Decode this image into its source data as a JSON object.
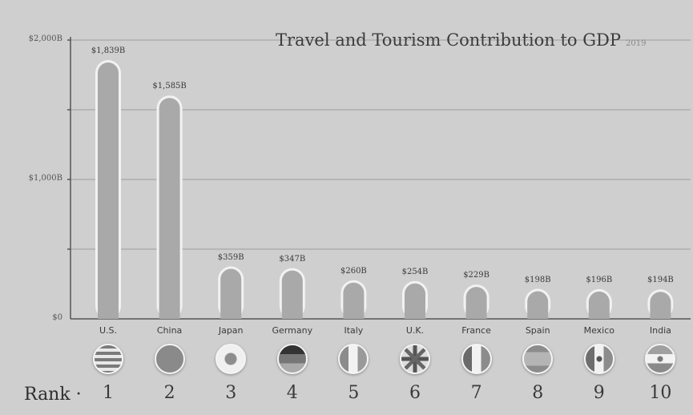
{
  "chart_data": {
    "type": "bar",
    "title": "Travel and Tourism Contribution to GDP",
    "subtitle": "2019",
    "ylim": [
      0,
      2000
    ],
    "yticks": [
      {
        "value": 0,
        "label": "$0"
      },
      {
        "value": 1000,
        "label": "$1,000B"
      },
      {
        "value": 2000,
        "label": "$2,000B"
      }
    ],
    "grid": true,
    "categories": [
      "U.S.",
      "China",
      "Japan",
      "Germany",
      "Italy",
      "U.K.",
      "France",
      "Spain",
      "Mexico",
      "India"
    ],
    "values": [
      1839,
      1585,
      359,
      347,
      260,
      254,
      229,
      198,
      196,
      194
    ],
    "value_labels": [
      "$1,839B",
      "$1,585B",
      "$359B",
      "$347B",
      "$260B",
      "$254B",
      "$229B",
      "$198B",
      "$196B",
      "$194B"
    ],
    "rank_label": "Rank",
    "ranks": [
      "1",
      "2",
      "3",
      "4",
      "5",
      "6",
      "7",
      "8",
      "9",
      "10"
    ],
    "flag_icons": [
      "us-flag-icon",
      "china-flag-icon",
      "japan-flag-icon",
      "germany-flag-icon",
      "italy-flag-icon",
      "uk-flag-icon",
      "france-flag-icon",
      "spain-flag-icon",
      "mexico-flag-icon",
      "india-flag-icon"
    ],
    "colors": {
      "bar": "#a9a9a9",
      "bar_outline": "#f2f2f2",
      "grid": "#9c9c9c"
    }
  }
}
